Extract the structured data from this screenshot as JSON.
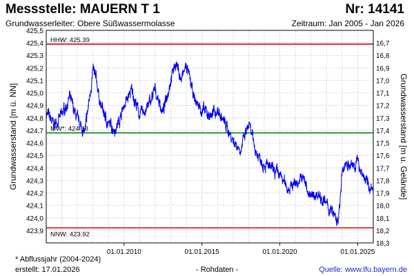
{
  "header": {
    "title": "Messstelle: MAUERN T 1",
    "number": "Nr: 14141",
    "aquifer": "Grundwasserleiter:   Obere Süßwassermolasse",
    "period": "Zeitraum: Jan 2005 - Jan 2026"
  },
  "footer": {
    "note": "* Abflussjahr (2004-2024)",
    "created": "erstellt:  17.01.2026",
    "raw": "- Rohdaten -",
    "source": "Quelle: www.lfu.bayern.de"
  },
  "colors": {
    "series": "#0000ee",
    "hhw": "#e00000",
    "nnw": "#e00000",
    "mw": "#008000",
    "grid": "#c8c8c8",
    "source_link": "#1f1fd0"
  },
  "chart_data": {
    "type": "line",
    "title": "",
    "xlabel": "",
    "ylabel": "Grundwasserstand [m ü. NN]",
    "ylabel_right": "Grundwasserstand [m u. Gelände]",
    "xlim": [
      "2005-01-01",
      "2026-01-01"
    ],
    "ylim": [
      423.8,
      425.5
    ],
    "ylim_right": [
      18.3,
      16.6
    ],
    "grid": true,
    "x_ticks": [
      "01.01.2010",
      "01.01.2015",
      "01.01.2020",
      "01.01.2025"
    ],
    "y_ticks": [
      "425,5",
      "425,4",
      "425,3",
      "425,2",
      "425,1",
      "425,0",
      "424,9",
      "424,8",
      "424,7",
      "424,6",
      "424,5",
      "424,4",
      "424,3",
      "424,2",
      "424,1",
      "424,0",
      "423,9"
    ],
    "y_ticks_right": [
      "16,7",
      "16,8",
      "16,9",
      "17,0",
      "17,1",
      "17,2",
      "17,3",
      "17,4",
      "17,5",
      "17,6",
      "17,7",
      "17,8",
      "17,9",
      "18,0",
      "18,1",
      "18,2",
      "18,3"
    ],
    "reference_lines": [
      {
        "name": "HHW",
        "label": "HHW: 425.39",
        "value": 425.39
      },
      {
        "name": "MW",
        "label": "MW*: 424.68",
        "value": 424.68
      },
      {
        "name": "NNW",
        "label": "NNW: 423.92",
        "value": 423.92
      }
    ],
    "series": [
      {
        "x": [
          "2005-01-01",
          "2005-07-01",
          "2006-01-01",
          "2006-07-01",
          "2007-01-01",
          "2007-07-01",
          "2008-01-01",
          "2008-04-01",
          "2008-07-01",
          "2009-01-01",
          "2009-07-01",
          "2010-01-01",
          "2010-07-01",
          "2011-01-01",
          "2011-07-01",
          "2012-01-01",
          "2012-07-01",
          "2013-01-01",
          "2013-05-01",
          "2013-09-01",
          "2014-01-01",
          "2014-07-01",
          "2015-01-01",
          "2015-07-01",
          "2016-01-01",
          "2016-07-01",
          "2017-01-01",
          "2017-07-01",
          "2018-01-01",
          "2018-07-01",
          "2019-01-01",
          "2019-07-01",
          "2020-01-01",
          "2020-07-01",
          "2021-01-01",
          "2021-07-01",
          "2022-01-01",
          "2022-07-01",
          "2023-01-01",
          "2023-07-01",
          "2023-10-01",
          "2024-01-01",
          "2024-04-01",
          "2024-07-01",
          "2025-01-01",
          "2025-07-01",
          "2026-01-01"
        ],
        "values": [
          424.84,
          424.74,
          424.82,
          424.96,
          424.78,
          424.68,
          425.18,
          425.08,
          424.9,
          424.74,
          424.72,
          424.9,
          425.02,
          424.82,
          424.88,
          425.02,
          424.84,
          425.12,
          425.25,
          425.1,
          425.22,
          424.95,
          424.86,
          424.82,
          424.86,
          424.75,
          424.62,
          424.55,
          424.74,
          424.52,
          424.44,
          424.38,
          424.34,
          424.24,
          424.28,
          424.32,
          424.16,
          424.2,
          424.1,
          424.02,
          423.95,
          424.34,
          424.46,
          424.4,
          424.45,
          424.3,
          424.2
        ]
      }
    ]
  }
}
